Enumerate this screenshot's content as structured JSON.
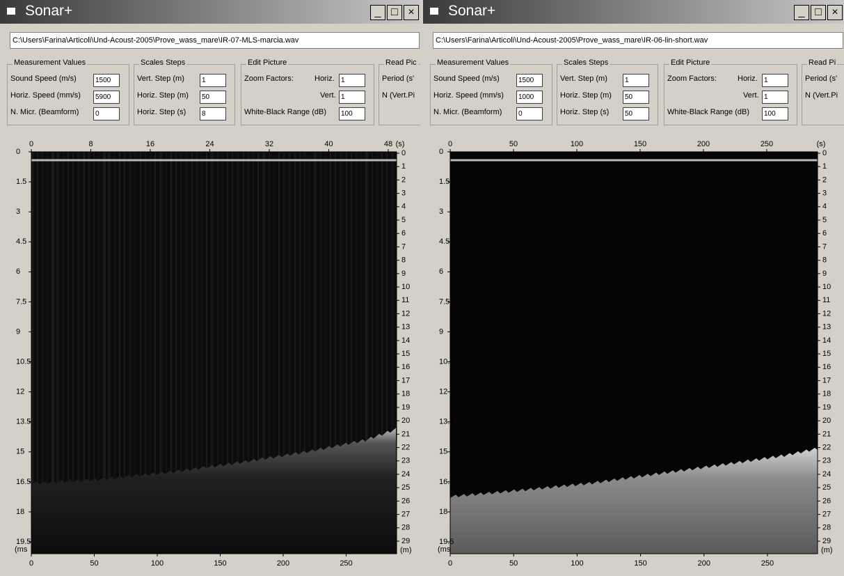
{
  "windows": [
    {
      "title": "Sonar+",
      "path": "C:\\Users\\Farina\\Articoli\\Und-Acoust-2005\\Prove_wass_mare\\IR-07-MLS-marcia.wav",
      "measurement": {
        "label": "Measurement Values",
        "fields": [
          {
            "label": "Sound Speed (m/s)",
            "value": "1500"
          },
          {
            "label": "Horiz. Speed (mm/s)",
            "value": "5900"
          },
          {
            "label": "N. Micr. (Beamform)",
            "value": "0"
          }
        ]
      },
      "scales": {
        "label": "Scales Steps",
        "fields": [
          {
            "label": "Vert. Step (m)",
            "value": "1"
          },
          {
            "label": "Horiz. Step (m)",
            "value": "50"
          },
          {
            "label": "Horiz. Step (s)",
            "value": "8"
          }
        ]
      },
      "edit": {
        "label": "Edit Picture",
        "zoom": "Zoom Factors:",
        "horiz_label": "Horiz.",
        "horiz": "1",
        "vert_label": "Vert.",
        "vert": "1",
        "range_label": "White-Black Range (dB)",
        "range": "100"
      },
      "read": {
        "label": "Read Pic",
        "lines": [
          "Period (s'",
          "N (Vert.Pi"
        ]
      },
      "top_axis": {
        "ticks": [
          "0",
          "8",
          "16",
          "24",
          "32",
          "40",
          "48"
        ],
        "unit": "(s)"
      },
      "left_axis": {
        "ticks": [
          "0",
          "1.5",
          "3",
          "4.5",
          "6",
          "7.5",
          "9",
          "10.5",
          "12",
          "13.5",
          "15",
          "16.5",
          "18",
          "19.5"
        ],
        "unit": "(ms"
      },
      "right_axis": {
        "ticks": [
          "0",
          "1",
          "2",
          "3",
          "4",
          "5",
          "6",
          "7",
          "8",
          "9",
          "10",
          "11",
          "12",
          "13",
          "14",
          "15",
          "16",
          "17",
          "18",
          "19",
          "20",
          "21",
          "22",
          "23",
          "24",
          "25",
          "26",
          "27",
          "28",
          "29"
        ],
        "unit": "(m)"
      },
      "bottom_axis": {
        "ticks": [
          "0",
          "50",
          "100",
          "150",
          "200",
          "250"
        ]
      }
    },
    {
      "title": "Sonar+",
      "path": "C:\\Users\\Farina\\Articoli\\Und-Acoust-2005\\Prove_wass_mare\\IR-06-lin-short.wav",
      "measurement": {
        "label": "Measurement Values",
        "fields": [
          {
            "label": "Sound Speed (m/s)",
            "value": "1500"
          },
          {
            "label": "Horiz. Speed (mm/s)",
            "value": "1000"
          },
          {
            "label": "N. Micr. (Beamform)",
            "value": "0"
          }
        ]
      },
      "scales": {
        "label": "Scales Steps",
        "fields": [
          {
            "label": "Vert. Step (m)",
            "value": "1"
          },
          {
            "label": "Horiz. Step (m)",
            "value": "50"
          },
          {
            "label": "Horiz. Step (s)",
            "value": "50"
          }
        ]
      },
      "edit": {
        "label": "Edit Picture",
        "zoom": "Zoom Factors:",
        "horiz_label": "Horiz.",
        "horiz": "1",
        "vert_label": "Vert.",
        "vert": "1",
        "range_label": "White-Black Range (dB)",
        "range": "100"
      },
      "read": {
        "label": "Read Pi",
        "lines": [
          "Period (s'",
          "N (Vert.Pi"
        ]
      },
      "top_axis": {
        "ticks": [
          "0",
          "50",
          "100",
          "150",
          "200",
          "250"
        ],
        "unit": "(s)"
      },
      "left_axis": {
        "ticks": [
          "0",
          "1.5",
          "3",
          "4.5",
          "6",
          "7.5",
          "9",
          "10.5",
          "12",
          "13.5",
          "15",
          "16.5",
          "18",
          "19.5"
        ],
        "unit": "(ms"
      },
      "right_axis": {
        "ticks": [
          "0",
          "1",
          "2",
          "3",
          "4",
          "5",
          "6",
          "7",
          "8",
          "9",
          "10",
          "11",
          "12",
          "13",
          "14",
          "15",
          "16",
          "17",
          "18",
          "19",
          "20",
          "21",
          "22",
          "23",
          "24",
          "25",
          "26",
          "27",
          "28",
          "29"
        ],
        "unit": "(m)"
      },
      "bottom_axis": {
        "ticks": [
          "0",
          "50",
          "100",
          "150",
          "200",
          "250"
        ]
      }
    }
  ]
}
